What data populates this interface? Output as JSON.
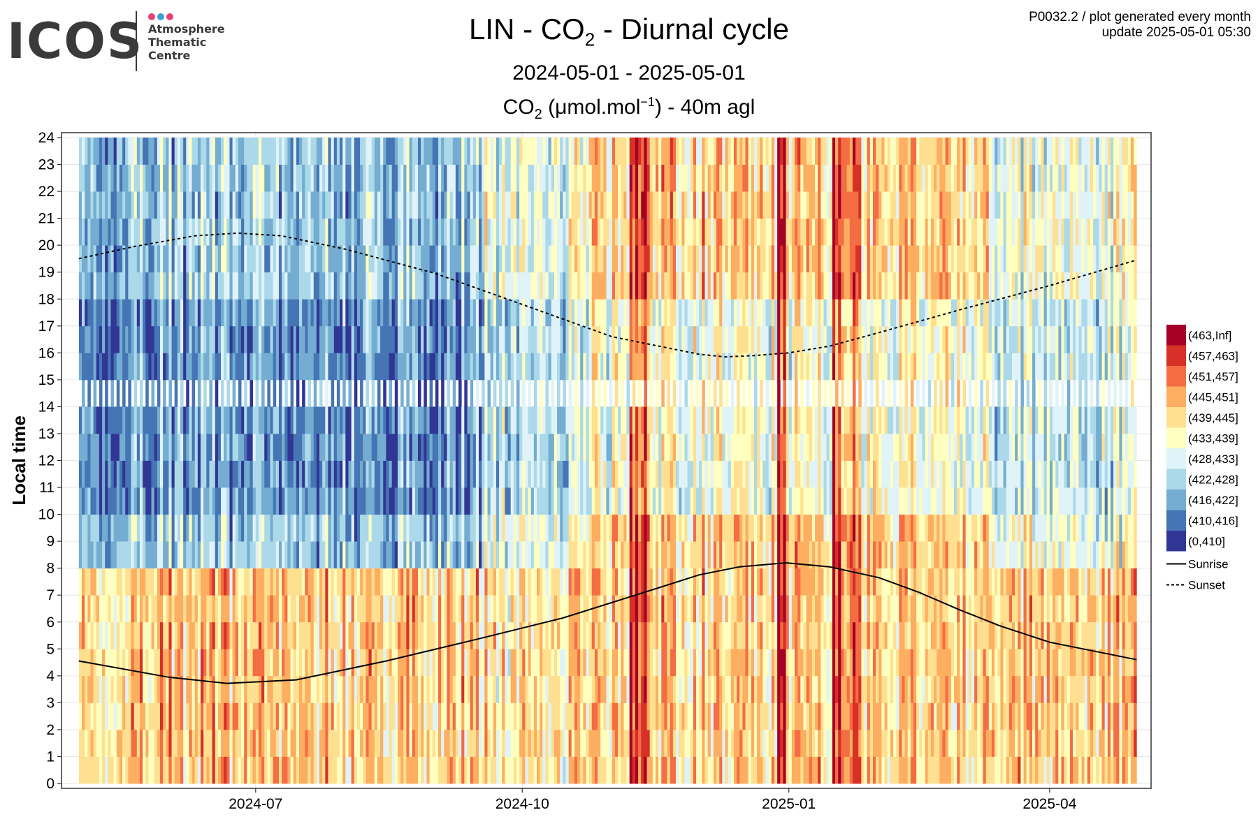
{
  "logo": {
    "wordmark": "ICOS",
    "line1": "Atmosphere",
    "line2": "Thematic",
    "line3": "Centre",
    "dot_colors": [
      "#e8407a",
      "#3aa0dc",
      "#e8407a"
    ]
  },
  "header": {
    "title_main": "LIN - CO",
    "title_sub": "2",
    "title_rest": " - Diurnal cycle",
    "date_range": "2024-05-01 - 2025-05-01",
    "subtitle_a": "CO",
    "subtitle_b": "2",
    "subtitle_c": " (μmol.mol",
    "subtitle_d": "−1",
    "subtitle_e": ") - 40m agl"
  },
  "meta": {
    "line1": "P0032.2 / plot generated every month",
    "line2": "update  2025-05-01 05:30"
  },
  "chart_data": {
    "type": "heatmap",
    "title": "LIN - CO2 - Diurnal cycle",
    "ylabel": "Local time",
    "xlabel": "",
    "x_ticks": [
      "2024-07",
      "2024-10",
      "2025-01",
      "2025-04"
    ],
    "x_tick_dates": [
      "2024-07-01",
      "2024-10-01",
      "2025-01-01",
      "2025-04-01"
    ],
    "x_range": [
      "2024-04-25",
      "2025-05-06"
    ],
    "data_range": [
      "2024-05-01",
      "2025-05-01"
    ],
    "y_ticks": [
      "0",
      "1",
      "2",
      "3",
      "4",
      "5",
      "6",
      "7",
      "8",
      "9",
      "10",
      "11",
      "12",
      "13",
      "14",
      "15",
      "16",
      "17",
      "18",
      "19",
      "20",
      "21",
      "22",
      "23",
      "24"
    ],
    "ylim": [
      0,
      24
    ],
    "grid": true,
    "legend_position": "right",
    "legend": [
      {
        "label": "(463,Inf]",
        "color": "#a50026"
      },
      {
        "label": "(457,463]",
        "color": "#d73027"
      },
      {
        "label": "(451,457]",
        "color": "#f46d43"
      },
      {
        "label": "(445,451]",
        "color": "#fdae61"
      },
      {
        "label": "(439,445]",
        "color": "#fee090"
      },
      {
        "label": "(433,439]",
        "color": "#ffffbf"
      },
      {
        "label": "(428,433]",
        "color": "#e0f3f8"
      },
      {
        "label": "(422,428]",
        "color": "#abd9e9"
      },
      {
        "label": "(416,422]",
        "color": "#74add1"
      },
      {
        "label": "(410,416]",
        "color": "#4575b4"
      },
      {
        "label": "(0,410]",
        "color": "#313695"
      }
    ],
    "lines": [
      {
        "name": "Sunrise",
        "style": "solid",
        "points": [
          [
            "2024-05-01",
            4.55
          ],
          [
            "2024-06-01",
            3.95
          ],
          [
            "2024-06-21",
            3.72
          ],
          [
            "2024-07-15",
            3.85
          ],
          [
            "2024-08-15",
            4.55
          ],
          [
            "2024-09-15",
            5.35
          ],
          [
            "2024-10-15",
            6.15
          ],
          [
            "2024-11-15",
            7.2
          ],
          [
            "2024-12-01",
            7.75
          ],
          [
            "2024-12-15",
            8.05
          ],
          [
            "2024-12-31",
            8.2
          ],
          [
            "2025-01-15",
            8.05
          ],
          [
            "2025-02-01",
            7.65
          ],
          [
            "2025-02-15",
            7.1
          ],
          [
            "2025-03-01",
            6.45
          ],
          [
            "2025-03-15",
            5.85
          ],
          [
            "2025-04-01",
            5.25
          ],
          [
            "2025-05-01",
            4.6
          ]
        ]
      },
      {
        "name": "Sunset",
        "style": "dotted",
        "points": [
          [
            "2024-05-01",
            19.5
          ],
          [
            "2024-05-20",
            19.95
          ],
          [
            "2024-06-10",
            20.35
          ],
          [
            "2024-06-25",
            20.45
          ],
          [
            "2024-07-10",
            20.35
          ],
          [
            "2024-08-01",
            19.85
          ],
          [
            "2024-09-01",
            18.95
          ],
          [
            "2024-10-01",
            17.8
          ],
          [
            "2024-11-01",
            16.6
          ],
          [
            "2024-12-01",
            15.95
          ],
          [
            "2024-12-10",
            15.85
          ],
          [
            "2024-12-20",
            15.9
          ],
          [
            "2025-01-01",
            16.0
          ],
          [
            "2025-01-15",
            16.25
          ],
          [
            "2025-02-01",
            16.75
          ],
          [
            "2025-03-01",
            17.6
          ],
          [
            "2025-04-01",
            18.5
          ],
          [
            "2025-05-01",
            19.45
          ]
        ]
      }
    ],
    "band_notes": [
      {
        "from": "2024-05-01",
        "to": "2024-09-15",
        "daytime": "(416,422]",
        "night": "(445,451]"
      },
      {
        "from": "2024-09-15",
        "to": "2024-10-20",
        "daytime": "(428,433]",
        "night": "(439,445]"
      },
      {
        "from": "2024-10-20",
        "to": "2025-03-10",
        "daytime": "(433,439]",
        "night": "(445,451]"
      },
      {
        "from": "2025-03-10",
        "to": "2025-05-01",
        "daytime": "(428,433]",
        "night": "(445,451]"
      }
    ],
    "peak_days": [
      "2024-11-08",
      "2024-11-12",
      "2024-12-29",
      "2025-01-17",
      "2025-01-24"
    ]
  }
}
